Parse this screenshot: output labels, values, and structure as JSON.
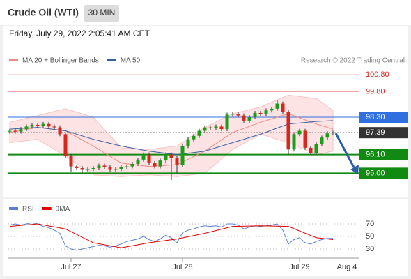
{
  "header": {
    "title": "Crude Oil (WTI)",
    "timeframe": "30 MIN",
    "datetime": "Friday, July 29, 2022 2:05:41 AM CET"
  },
  "chart_data": {
    "type": "candlestick",
    "credit": "Research © 2022 Trading Central",
    "up_color": "#1a9e1a",
    "down_color": "#d9261c",
    "ylim": [
      93.7,
      101.3
    ],
    "categories": [
      null,
      null,
      null,
      null,
      null,
      null,
      null,
      null,
      null,
      null,
      null,
      "Jul 27",
      null,
      null,
      null,
      null,
      null,
      null,
      null,
      null,
      null,
      null,
      null,
      null,
      null,
      null,
      null,
      null,
      null,
      null,
      null,
      "Jul 28",
      null,
      null,
      null,
      null,
      null,
      null,
      null,
      null,
      null,
      null,
      null,
      null,
      null,
      null,
      null,
      null,
      null,
      null,
      null,
      null,
      "Jul 29",
      null,
      null,
      null,
      null,
      null,
      null
    ],
    "future_label": "Aug 4",
    "open": [
      97.45,
      97.5,
      97.45,
      97.6,
      97.75,
      97.85,
      97.8,
      97.9,
      97.75,
      97.7,
      97.3,
      96.0,
      95.4,
      95.3,
      95.2,
      95.25,
      95.3,
      95.45,
      95.35,
      95.2,
      95.25,
      95.35,
      95.4,
      95.55,
      95.8,
      96.1,
      95.6,
      95.4,
      95.75,
      96.1,
      95.9,
      95.5,
      96.6,
      97.0,
      97.2,
      97.5,
      97.7,
      97.65,
      97.75,
      97.6,
      98.45,
      98.5,
      98.4,
      98.1,
      98.3,
      98.55,
      98.5,
      98.7,
      98.8,
      99.1,
      98.6,
      96.4,
      97.3,
      97.5,
      96.5,
      96.2,
      96.7,
      97.1,
      97.35
    ],
    "high": [
      97.62,
      97.62,
      97.72,
      97.87,
      97.97,
      97.97,
      98.02,
      98.02,
      97.87,
      97.82,
      97.42,
      96.12,
      95.52,
      95.42,
      95.37,
      95.42,
      95.57,
      95.57,
      95.47,
      95.37,
      95.47,
      95.52,
      95.67,
      95.92,
      96.22,
      96.22,
      95.72,
      95.87,
      96.22,
      96.22,
      96.02,
      96.72,
      97.12,
      97.32,
      97.62,
      97.82,
      97.82,
      97.87,
      97.87,
      98.57,
      98.62,
      98.62,
      98.52,
      98.42,
      98.67,
      98.67,
      98.82,
      98.92,
      99.3,
      99.22,
      98.72,
      97.42,
      97.62,
      97.62,
      96.62,
      96.82,
      97.22,
      97.47,
      97.51
    ],
    "low": [
      97.33,
      97.33,
      97.33,
      97.48,
      97.63,
      97.68,
      97.68,
      97.63,
      97.58,
      97.18,
      95.88,
      95.1,
      95.18,
      95.0,
      95.08,
      95.13,
      95.18,
      95.23,
      95.08,
      95.08,
      95.13,
      95.23,
      95.28,
      95.43,
      95.68,
      95.48,
      95.28,
      95.28,
      95.63,
      94.6,
      95.0,
      95.38,
      96.48,
      96.88,
      97.08,
      97.38,
      97.53,
      97.53,
      97.48,
      97.48,
      98.33,
      98.28,
      97.98,
      97.98,
      98.18,
      98.38,
      98.38,
      98.58,
      98.68,
      98.48,
      96.1,
      96.28,
      97.18,
      96.38,
      96.08,
      96.08,
      96.58,
      96.98,
      97.23
    ],
    "close": [
      97.5,
      97.45,
      97.6,
      97.75,
      97.85,
      97.8,
      97.9,
      97.75,
      97.7,
      97.3,
      96.0,
      95.4,
      95.3,
      95.2,
      95.25,
      95.3,
      95.45,
      95.35,
      95.2,
      95.25,
      95.35,
      95.4,
      95.55,
      95.8,
      96.1,
      95.6,
      95.4,
      95.75,
      96.1,
      95.9,
      95.5,
      96.6,
      97.0,
      97.2,
      97.5,
      97.7,
      97.65,
      97.75,
      97.6,
      98.45,
      98.5,
      98.4,
      98.1,
      98.3,
      98.55,
      98.5,
      98.7,
      98.8,
      99.1,
      98.6,
      96.4,
      97.3,
      97.5,
      96.5,
      96.2,
      96.7,
      97.1,
      97.35,
      97.39
    ],
    "overlays": {
      "x": [
        0,
        5,
        10,
        15,
        20,
        25,
        30,
        35,
        40,
        45,
        50,
        55,
        58
      ],
      "bb_upper": [
        98.0,
        98.4,
        98.8,
        98.3,
        96.5,
        96.4,
        96.6,
        97.7,
        98.5,
        98.9,
        99.6,
        99.4,
        98.7
      ],
      "bb_lower": [
        96.8,
        97.0,
        96.0,
        94.9,
        94.8,
        94.9,
        94.8,
        95.0,
        96.4,
        97.3,
        96.8,
        96.1,
        96.3
      ],
      "ma20": [
        97.4,
        97.7,
        97.5,
        96.6,
        95.6,
        95.4,
        95.5,
        96.3,
        97.4,
        98.0,
        98.5,
        97.9,
        97.6
      ],
      "ma50": [
        97.6,
        97.7,
        97.5,
        97.0,
        96.6,
        96.3,
        96.1,
        96.3,
        96.8,
        97.3,
        97.9,
        98.05,
        98.1
      ]
    },
    "legend": [
      {
        "name": "MA 20 + Bollinger Bands",
        "color": "#f28b82"
      },
      {
        "name": "MA 50",
        "color": "#3a5fa0"
      }
    ],
    "levels": [
      {
        "value": 100.8,
        "label": "100.80",
        "color": "#f4a3a3",
        "text_color": "#d9261c",
        "boxed": false,
        "width": 1
      },
      {
        "value": 99.8,
        "label": "99.80",
        "color": "#f4a3a3",
        "text_color": "#d9261c",
        "boxed": false,
        "width": 1
      },
      {
        "value": 98.3,
        "label": "98.30",
        "color": "#2f6fe0",
        "text_color": "#ffffff",
        "boxed": true,
        "width": 1
      },
      {
        "value": 97.39,
        "color": "#555555",
        "text_color": "#ffffff",
        "boxed": true,
        "width": 1,
        "dotted": true,
        "box_color": "#333333"
      },
      {
        "value": 96.1,
        "label": "96.10",
        "color": "#118a11",
        "text_color": "#ffffff",
        "boxed": true,
        "width": 2
      },
      {
        "value": 95.0,
        "label": "95.00",
        "color": "#118a11",
        "text_color": "#ffffff",
        "boxed": true,
        "width": 2
      }
    ],
    "rsi": {
      "legend": [
        {
          "name": "RSI",
          "color": "#5b7fd6"
        },
        {
          "name": "9MA",
          "color": "#e00000"
        }
      ],
      "ylim": [
        20,
        80
      ],
      "yticks": [
        30,
        50,
        70
      ],
      "values": [
        68,
        70,
        68,
        70,
        72,
        70,
        66,
        64,
        60,
        55,
        35,
        30,
        28,
        30,
        32,
        34,
        36,
        35,
        33,
        35,
        38,
        42,
        44,
        46,
        50,
        45,
        42,
        46,
        52,
        48,
        40,
        56,
        60,
        62,
        65,
        67,
        66,
        67,
        65,
        70,
        70,
        68,
        62,
        65,
        67,
        66,
        67,
        68,
        70,
        60,
        38,
        45,
        48,
        40,
        38,
        42,
        45,
        47,
        47
      ],
      "ma_x": [
        0,
        5,
        10,
        15,
        20,
        25,
        30,
        35,
        40,
        45,
        50,
        55,
        58
      ],
      "ma_values": [
        66,
        70,
        62,
        40,
        32,
        40,
        46,
        55,
        66,
        67,
        66,
        48,
        45
      ]
    }
  }
}
